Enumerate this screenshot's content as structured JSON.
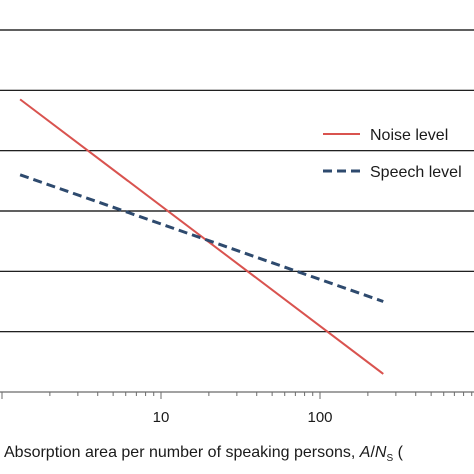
{
  "chart_data": {
    "type": "line",
    "x_scale": "log",
    "xlabel": {
      "text": "Absorption area per number of speaking persons, ",
      "var": "A",
      "sep": "/",
      "var2": "N",
      "sub": "S",
      "tail": " ("
    },
    "x_ticks": [
      10,
      100
    ],
    "x_tick_labels": [
      "10",
      "100"
    ],
    "xlim": [
      1.3,
      280
    ],
    "ylim": [
      0,
      6
    ],
    "y_gridlines": [
      1,
      2,
      3,
      4,
      5,
      6
    ],
    "grid": true,
    "legend_position": "right",
    "series": [
      {
        "name": "Noise level",
        "color": "#d9534f",
        "style": "solid",
        "x": [
          1.3,
          250
        ],
        "y": [
          4.85,
          0.3
        ]
      },
      {
        "name": "Speech level",
        "color": "#2e4a6e",
        "style": "dashed",
        "x": [
          1.3,
          250
        ],
        "y": [
          3.6,
          1.5
        ]
      }
    ]
  }
}
